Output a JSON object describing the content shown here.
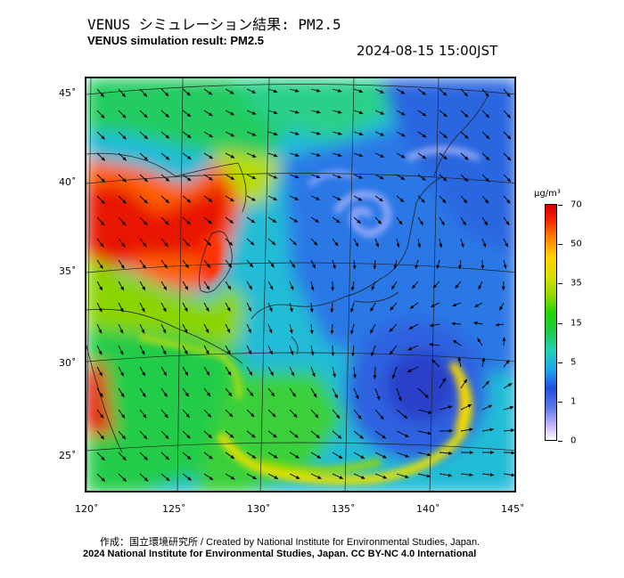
{
  "header": {
    "title_ja": "VENUS シミュレーション結果: PM2.5",
    "title_en": "VENUS simulation result: PM2.5",
    "timestamp": "2024-08-15 15:00JST"
  },
  "map": {
    "lat_labels": [
      "45˚",
      "40˚",
      "35˚",
      "30˚",
      "25˚"
    ],
    "lon_labels": [
      "120˚",
      "125˚",
      "130˚",
      "135˚",
      "140˚",
      "145˚"
    ],
    "features": [
      "PM2.5 concentration field",
      "wind vectors",
      "coastlines",
      "lat-lon graticule",
      "typhoon circulation near 29N 140E"
    ]
  },
  "colorbar": {
    "unit": "μg/m³",
    "ticks": [
      "70",
      "50",
      "35",
      "15",
      "5",
      "1",
      "0"
    ],
    "colors": [
      "#d30000",
      "#ff8000",
      "#ffd000",
      "#9ad800",
      "#1ccc4a",
      "#1aa6ee",
      "#2050e0",
      "#c9b3ff",
      "#ffffff"
    ]
  },
  "footer": {
    "credit_ja_en": "作成：国立環境研究所 / Created by National Institute for Environmental Studies, Japan.",
    "license": "2024 National Institute for Environmental Studies, Japan. CC BY-NC 4.0 International"
  }
}
